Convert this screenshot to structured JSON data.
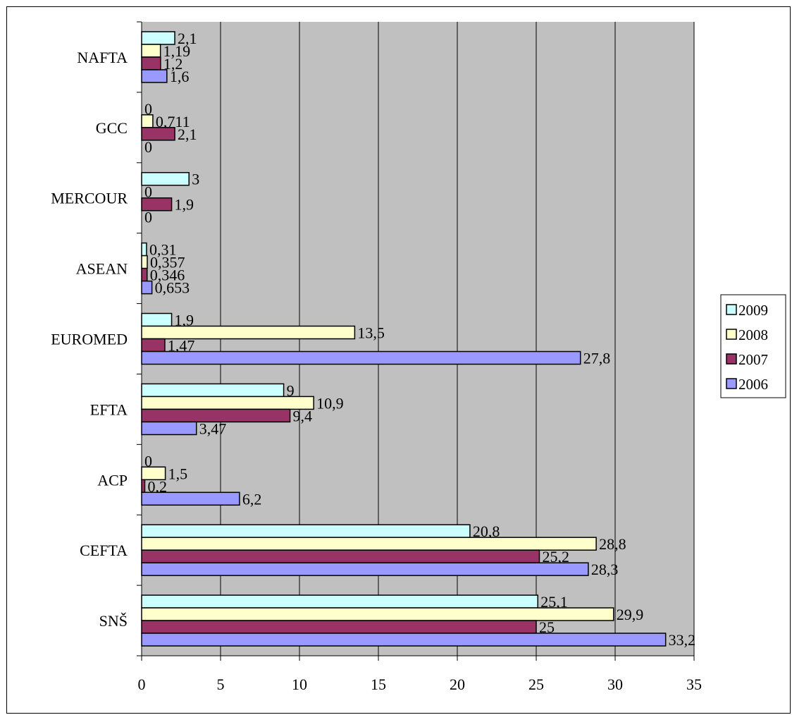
{
  "chart_data": {
    "type": "bar",
    "orientation": "horizontal",
    "title": "",
    "xlabel": "",
    "ylabel": "",
    "categories": [
      "NAFTA",
      "GCC",
      "MERCOUR",
      "ASEAN",
      "EUROMED",
      "EFTA",
      "ACP",
      "CEFTA",
      "SNŠ"
    ],
    "xlim": [
      0,
      35
    ],
    "xticks": [
      "0",
      "5",
      "10",
      "15",
      "20",
      "25",
      "30",
      "35"
    ],
    "grid": "vertical",
    "plot_background": "#c0c0c0",
    "legend_position": "right",
    "series": [
      {
        "name": "2009",
        "color": "#ccffff",
        "values": [
          2.1,
          0,
          3,
          0.31,
          1.9,
          9,
          0,
          20.8,
          25.1
        ],
        "labels": [
          "2,1",
          "0",
          "3",
          "0,31",
          "1,9",
          "9",
          "0",
          "20,8",
          "25,1"
        ]
      },
      {
        "name": "2008",
        "color": "#ffffcc",
        "values": [
          1.19,
          0.711,
          0,
          0.357,
          13.5,
          10.9,
          1.5,
          28.8,
          29.9
        ],
        "labels": [
          "1,19",
          "0,711",
          "0",
          "0,357",
          "13,5",
          "10,9",
          "1,5",
          "28,8",
          "29,9"
        ]
      },
      {
        "name": "2007",
        "color": "#993366",
        "values": [
          1.2,
          2.1,
          1.9,
          0.346,
          1.47,
          9.4,
          0.2,
          25.2,
          25
        ],
        "labels": [
          "1,2",
          "2,1",
          "1,9",
          "0,346",
          "1,47",
          "9,4",
          "0,2",
          "25,2",
          "25"
        ]
      },
      {
        "name": "2006",
        "color": "#9999ff",
        "values": [
          1.6,
          0,
          0,
          0.653,
          27.8,
          3.47,
          6.2,
          28.3,
          33.2
        ],
        "labels": [
          "1,6",
          "0",
          "0",
          "0,653",
          "27,8",
          "3,47",
          "6,2",
          "28,3",
          "33,2"
        ]
      }
    ]
  }
}
